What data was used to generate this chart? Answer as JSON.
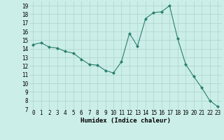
{
  "x": [
    0,
    1,
    2,
    3,
    4,
    5,
    6,
    7,
    8,
    9,
    10,
    11,
    12,
    13,
    14,
    15,
    16,
    17,
    18,
    19,
    20,
    21,
    22,
    23
  ],
  "y": [
    14.5,
    14.7,
    14.2,
    14.1,
    13.7,
    13.5,
    12.8,
    12.2,
    12.1,
    11.5,
    11.2,
    12.5,
    15.8,
    14.3,
    17.5,
    18.2,
    18.3,
    19.0,
    15.2,
    12.2,
    10.8,
    9.5,
    8.0,
    7.3
  ],
  "xlabel": "Humidex (Indice chaleur)",
  "xlim": [
    -0.5,
    23.5
  ],
  "ylim": [
    7,
    19.5
  ],
  "yticks": [
    7,
    8,
    9,
    10,
    11,
    12,
    13,
    14,
    15,
    16,
    17,
    18,
    19
  ],
  "xticks": [
    0,
    1,
    2,
    3,
    4,
    5,
    6,
    7,
    8,
    9,
    10,
    11,
    12,
    13,
    14,
    15,
    16,
    17,
    18,
    19,
    20,
    21,
    22,
    23
  ],
  "line_color": "#2a7f6f",
  "bg_color": "#cceee8",
  "grid_color": "#aad4cc",
  "tick_fontsize": 5.5,
  "label_fontsize": 6.5
}
